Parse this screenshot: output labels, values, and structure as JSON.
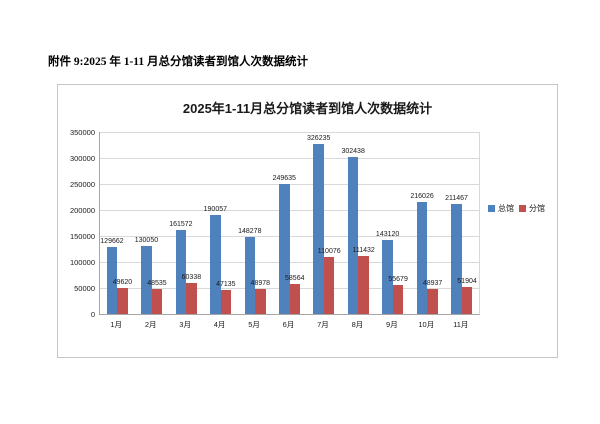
{
  "page": {
    "heading": "附件 9:2025 年 1-11 月总分馆读者到馆人次数据统计"
  },
  "chart_data": {
    "type": "bar",
    "title": "2025年1-11月总分馆读者到馆人次数据统计",
    "categories": [
      "1月",
      "2月",
      "3月",
      "4月",
      "5月",
      "6月",
      "7月",
      "8月",
      "9月",
      "10月",
      "11月"
    ],
    "series": [
      {
        "name": "总馆",
        "color": "#4F81BD",
        "values": [
          129662,
          130050,
          161572,
          190057,
          148278,
          249635,
          326235,
          302438,
          143120,
          216026,
          211467
        ]
      },
      {
        "name": "分馆",
        "color": "#C0504D",
        "values": [
          49620,
          48535,
          60338,
          47135,
          48978,
          58564,
          110076,
          111432,
          55679,
          48937,
          51904
        ]
      }
    ],
    "xlabel": "",
    "ylabel": "",
    "ylim": [
      0,
      350000
    ],
    "y_ticks": [
      0,
      50000,
      100000,
      150000,
      200000,
      250000,
      300000,
      350000
    ],
    "grid": true,
    "data_labels": true,
    "legend_position": "right"
  },
  "style": {
    "gridline_color": "#d9d9d9",
    "axis_color": "#a6a6a6",
    "text_color": "#1a1a1a",
    "frame_border_color": "#c6c6c6"
  }
}
